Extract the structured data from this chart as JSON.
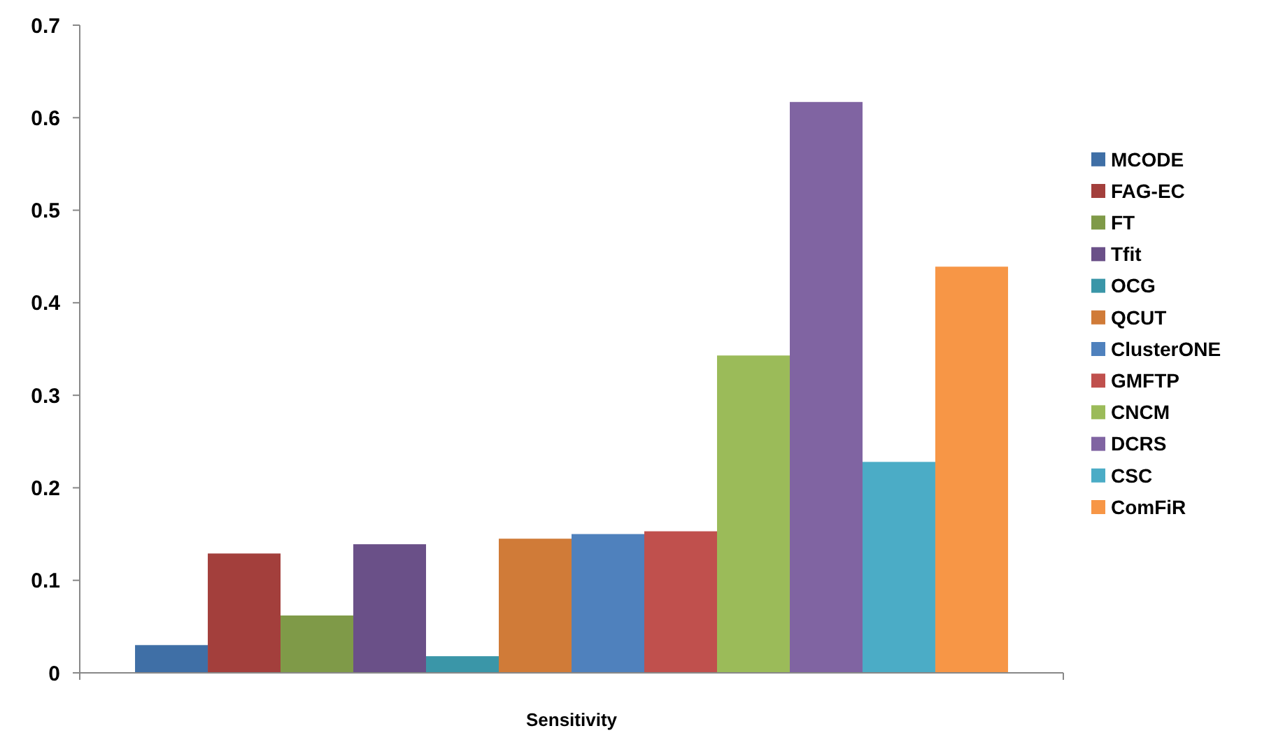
{
  "chart_data": {
    "type": "bar",
    "categories": [
      "Sensitivity"
    ],
    "series": [
      {
        "name": "MCODE",
        "color": "#3f6fa6",
        "values": [
          0.03
        ]
      },
      {
        "name": "FAG-EC",
        "color": "#a33f3c",
        "values": [
          0.129
        ]
      },
      {
        "name": "FT",
        "color": "#7f9a48",
        "values": [
          0.062
        ]
      },
      {
        "name": "Tfit",
        "color": "#6a5088",
        "values": [
          0.139
        ]
      },
      {
        "name": "OCG",
        "color": "#3a96a8",
        "values": [
          0.018
        ]
      },
      {
        "name": "QCUT",
        "color": "#d07b38",
        "values": [
          0.145
        ]
      },
      {
        "name": "ClusterONE",
        "color": "#4f81bd",
        "values": [
          0.15
        ]
      },
      {
        "name": "GMFTP",
        "color": "#c0504d",
        "values": [
          0.153
        ]
      },
      {
        "name": "CNCM",
        "color": "#9bbb59",
        "values": [
          0.343
        ]
      },
      {
        "name": "DCRS",
        "color": "#8064a2",
        "values": [
          0.617
        ]
      },
      {
        "name": "CSC",
        "color": "#4bacc6",
        "values": [
          0.228
        ]
      },
      {
        "name": "ComFiR",
        "color": "#f79646",
        "values": [
          0.439
        ]
      }
    ],
    "ylim": [
      0,
      0.7
    ],
    "yticks": [
      0,
      0.1,
      0.2,
      0.3,
      0.4,
      0.5,
      0.6,
      0.7
    ],
    "grid": false,
    "legend": "right"
  }
}
